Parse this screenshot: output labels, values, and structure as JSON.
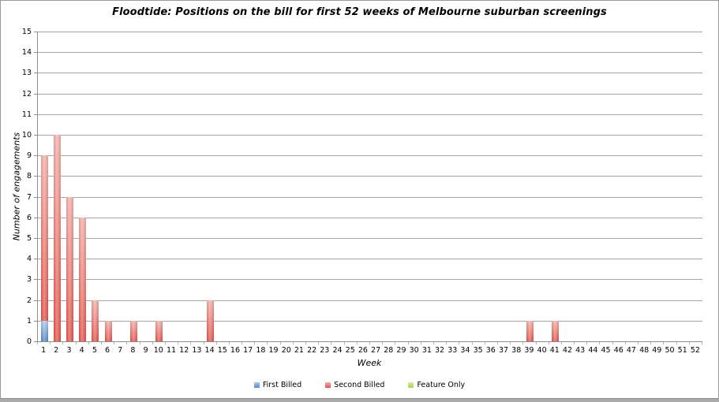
{
  "chart_data": {
    "type": "bar",
    "stacked": true,
    "title": "Floodtide: Positions on the bill for first 52 weeks of Melbourne suburban screenings",
    "xlabel": "Week",
    "ylabel": "Number of engagements",
    "ylim": [
      0,
      15
    ],
    "ytick_step": 1,
    "grid": "horizontal",
    "legend_position": "bottom",
    "categories": [
      1,
      2,
      3,
      4,
      5,
      6,
      7,
      8,
      9,
      10,
      11,
      12,
      13,
      14,
      15,
      16,
      17,
      18,
      19,
      20,
      21,
      22,
      23,
      24,
      25,
      26,
      27,
      28,
      29,
      30,
      31,
      32,
      33,
      34,
      35,
      36,
      37,
      38,
      39,
      40,
      41,
      42,
      43,
      44,
      45,
      46,
      47,
      48,
      49,
      50,
      51,
      52
    ],
    "series": [
      {
        "name": "First Billed",
        "color_top": "#abcdf1",
        "color_bottom": "#4d89cc",
        "values": [
          1,
          0,
          0,
          0,
          0,
          0,
          0,
          0,
          0,
          0,
          0,
          0,
          0,
          0,
          0,
          0,
          0,
          0,
          0,
          0,
          0,
          0,
          0,
          0,
          0,
          0,
          0,
          0,
          0,
          0,
          0,
          0,
          0,
          0,
          0,
          0,
          0,
          0,
          0,
          0,
          0,
          0,
          0,
          0,
          0,
          0,
          0,
          0,
          0,
          0,
          0,
          0
        ]
      },
      {
        "name": "Second Billed",
        "color_top": "#f6b0aa",
        "color_bottom": "#e85247",
        "values": [
          8,
          10,
          7,
          6,
          2,
          1,
          0,
          1,
          0,
          1,
          0,
          0,
          0,
          2,
          0,
          0,
          0,
          0,
          0,
          0,
          0,
          0,
          0,
          0,
          0,
          0,
          0,
          0,
          0,
          0,
          0,
          0,
          0,
          0,
          0,
          0,
          0,
          0,
          1,
          0,
          1,
          0,
          0,
          0,
          0,
          0,
          0,
          0,
          0,
          0,
          0,
          0
        ]
      },
      {
        "name": "Feature Only",
        "color_top": "#d5eb9e",
        "color_bottom": "#a2d355",
        "values": [
          0,
          0,
          0,
          0,
          0,
          0,
          0,
          0,
          0,
          0,
          0,
          0,
          0,
          0,
          0,
          0,
          0,
          0,
          0,
          0,
          0,
          0,
          0,
          0,
          0,
          0,
          0,
          0,
          0,
          0,
          0,
          0,
          0,
          0,
          0,
          0,
          0,
          0,
          0,
          0,
          0,
          0,
          0,
          0,
          0,
          0,
          0,
          0,
          0,
          0,
          0,
          0
        ]
      }
    ]
  },
  "frame": {
    "gridline_color": "#a6a6a6",
    "axis_color": "#8f8f8f",
    "minor_tick_color": "#b5b5b5",
    "border_color": "#999999"
  }
}
